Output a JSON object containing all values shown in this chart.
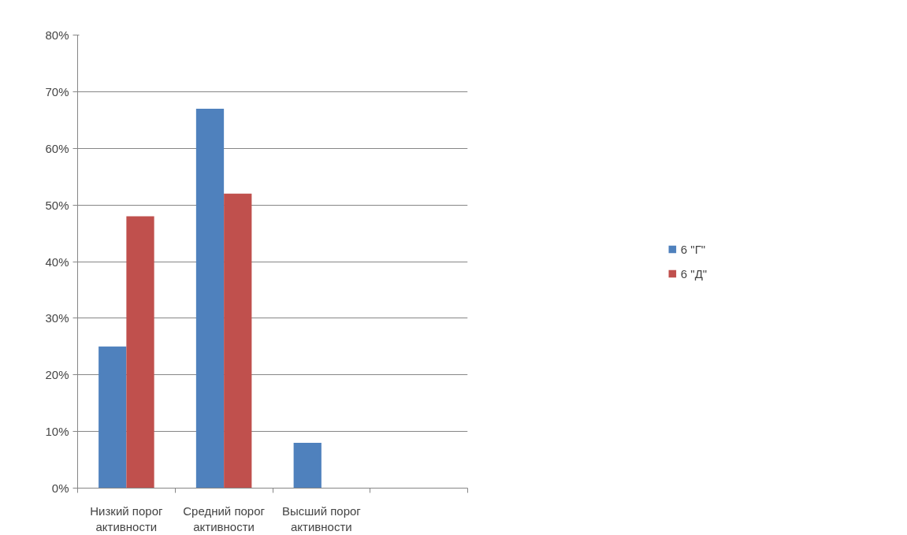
{
  "chart_data": {
    "type": "bar",
    "categories": [
      "Низкий порог активности",
      "Средний порог активности",
      "Высший порог активности",
      null
    ],
    "series": [
      {
        "name": "6 \"Г\"",
        "color": "#4f81bd",
        "values": [
          25,
          67,
          8,
          null
        ]
      },
      {
        "name": "6 \"Д\"",
        "color": "#c0504d",
        "values": [
          48,
          52,
          null,
          null
        ]
      }
    ],
    "ylim": [
      0,
      80
    ],
    "yticks": [
      {
        "value": 0,
        "label": "0%"
      },
      {
        "value": 10,
        "label": "10%"
      },
      {
        "value": 20,
        "label": "20%"
      },
      {
        "value": 30,
        "label": "30%"
      },
      {
        "value": 40,
        "label": "40%"
      },
      {
        "value": 50,
        "label": "50%"
      },
      {
        "value": 60,
        "label": "60%"
      },
      {
        "value": 70,
        "label": "70%"
      },
      {
        "value": 80,
        "label": "80%"
      }
    ],
    "grid": "y",
    "legend": "right"
  }
}
